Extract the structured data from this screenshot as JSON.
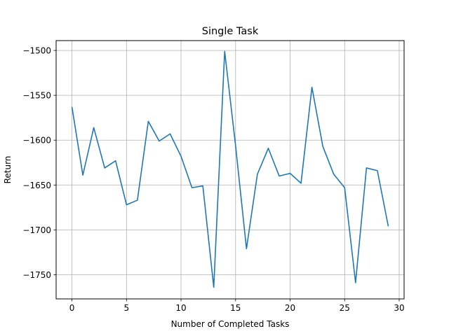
{
  "chart_data": {
    "type": "line",
    "title": "Single Task",
    "xlabel": "Number of Completed Tasks",
    "ylabel": "Return",
    "xlim": [
      -1.45,
      30.45
    ],
    "ylim": [
      -1777,
      -1489
    ],
    "xticks": [
      0,
      5,
      10,
      15,
      20,
      25,
      30
    ],
    "yticks": [
      -1750,
      -1700,
      -1650,
      -1600,
      -1550,
      -1500
    ],
    "grid": true,
    "series": [
      {
        "color": "#1f77b4",
        "x": [
          0,
          1,
          2,
          3,
          4,
          5,
          6,
          7,
          8,
          9,
          10,
          11,
          12,
          13,
          14,
          15,
          16,
          17,
          18,
          19,
          20,
          21,
          22,
          23,
          24,
          25,
          26,
          27,
          28,
          29
        ],
        "values": [
          -1563,
          -1639,
          -1586,
          -1631,
          -1623,
          -1672,
          -1667,
          -1579,
          -1601,
          -1593,
          -1618,
          -1653,
          -1651,
          -1764,
          -1501,
          -1606,
          -1721,
          -1638,
          -1609,
          -1640,
          -1637,
          -1648,
          -1541,
          -1607,
          -1638,
          -1653,
          -1759,
          -1631,
          -1634,
          -1696
        ]
      }
    ]
  }
}
